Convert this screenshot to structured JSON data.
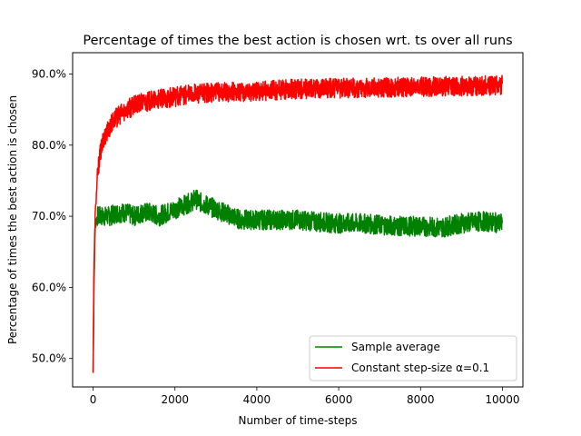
{
  "chart_data": {
    "type": "line",
    "title": "Percentage of times the best action is chosen wrt. ts over all runs",
    "xlabel": "Number of time-steps",
    "ylabel": "Percentage of times the best action is chosen",
    "xlim": [
      -500,
      10500
    ],
    "ylim": [
      46.0,
      93.0
    ],
    "x_ticks": [
      0,
      2000,
      4000,
      6000,
      8000,
      10000
    ],
    "x_tick_labels": [
      "0",
      "2000",
      "4000",
      "6000",
      "8000",
      "10000"
    ],
    "y_ticks": [
      50,
      60,
      70,
      80,
      90
    ],
    "y_tick_labels": [
      "50.0%",
      "60.0%",
      "70.0%",
      "80.0%",
      "90.0%"
    ],
    "grid": false,
    "legend_position": "lower-right",
    "series": [
      {
        "name": "Sample average",
        "color": "#008000",
        "x": [
          0,
          20,
          50,
          100,
          200,
          400,
          600,
          800,
          1000,
          1200,
          1400,
          1600,
          1800,
          2000,
          2200,
          2400,
          2500,
          2600,
          2800,
          3000,
          3200,
          3400,
          3600,
          3800,
          4000,
          4500,
          5000,
          5500,
          6000,
          6500,
          7000,
          7500,
          8000,
          8500,
          9000,
          9500,
          10000
        ],
        "y": [
          48,
          60,
          68.5,
          70,
          70,
          70,
          70.5,
          70.5,
          70,
          70.5,
          70.5,
          70,
          70.5,
          71,
          71.5,
          72,
          72.5,
          72,
          71.5,
          71,
          70.5,
          70,
          69.5,
          69.5,
          69.5,
          69.5,
          69.5,
          69.2,
          69,
          69,
          68.8,
          68.6,
          68.6,
          68.4,
          69,
          69.3,
          69
        ]
      },
      {
        "name": "Constant step-size α=0.1",
        "color": "#ff0000",
        "x": [
          0,
          20,
          50,
          100,
          150,
          200,
          300,
          400,
          500,
          600,
          700,
          800,
          1000,
          1200,
          1500,
          2000,
          2500,
          3000,
          3500,
          4000,
          5000,
          6000,
          7000,
          8000,
          9000,
          10000
        ],
        "y": [
          48,
          62,
          70,
          75,
          78,
          79.5,
          81.5,
          82.5,
          83.5,
          84,
          84.5,
          85,
          85.5,
          86,
          86.3,
          86.8,
          87.2,
          87.4,
          87.5,
          87.6,
          87.9,
          88,
          88.1,
          88.2,
          88.3,
          88.4
        ]
      }
    ]
  }
}
